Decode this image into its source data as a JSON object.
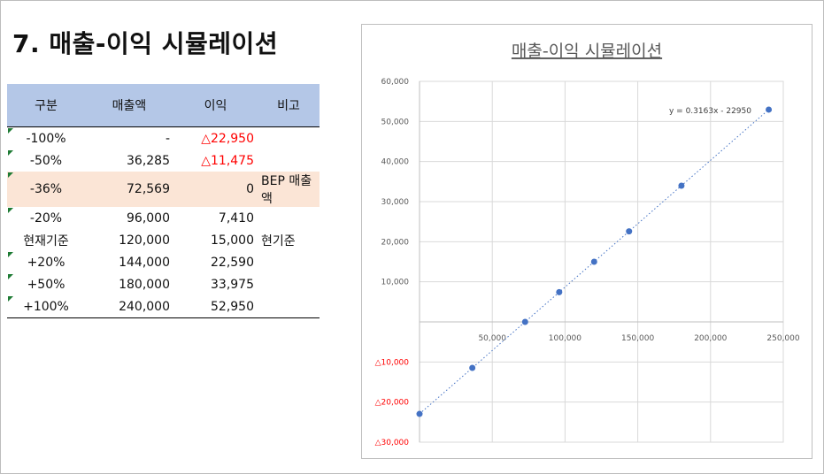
{
  "page_title": "7. 매출-이익 시뮬레이션",
  "table": {
    "headers": [
      "구분",
      "매출액",
      "이익",
      "비고"
    ],
    "rows": [
      {
        "label": "-100%",
        "sales": "-",
        "profit": "△22,950",
        "note": "",
        "flag": true,
        "neg": true,
        "hl": false
      },
      {
        "label": "-50%",
        "sales": "36,285",
        "profit": "△11,475",
        "note": "",
        "flag": true,
        "neg": true,
        "hl": false
      },
      {
        "label": "-36%",
        "sales": "72,569",
        "profit": "0",
        "note": "BEP 매출액",
        "flag": true,
        "neg": false,
        "hl": true
      },
      {
        "label": "-20%",
        "sales": "96,000",
        "profit": "7,410",
        "note": "",
        "flag": true,
        "neg": false,
        "hl": false
      },
      {
        "label": "현재기준",
        "sales": "120,000",
        "profit": "15,000",
        "note": "현기준",
        "flag": false,
        "neg": false,
        "hl": false
      },
      {
        "label": "+20%",
        "sales": "144,000",
        "profit": "22,590",
        "note": "",
        "flag": true,
        "neg": false,
        "hl": false
      },
      {
        "label": "+50%",
        "sales": "180,000",
        "profit": "33,975",
        "note": "",
        "flag": true,
        "neg": false,
        "hl": false
      },
      {
        "label": "+100%",
        "sales": "240,000",
        "profit": "52,950",
        "note": "",
        "flag": true,
        "neg": false,
        "hl": false
      }
    ]
  },
  "colors": {
    "point": "#4472c4",
    "negative_label": "#ff0000",
    "header_fill": "#b4c7e7",
    "highlight_fill": "#fbe5d6"
  },
  "chart_data": {
    "type": "scatter",
    "title": "매출-이익 시뮬레이션",
    "x": [
      0,
      36285,
      72569,
      96000,
      120000,
      144000,
      180000,
      240000
    ],
    "y": [
      -22950,
      -11475,
      0,
      7410,
      15000,
      22590,
      33975,
      52950
    ],
    "xlim": [
      0,
      250000
    ],
    "ylim": [
      -30000,
      60000
    ],
    "xticks": [
      {
        "v": 50000,
        "label": "50,000"
      },
      {
        "v": 100000,
        "label": "100,000"
      },
      {
        "v": 150000,
        "label": "150,000"
      },
      {
        "v": 200000,
        "label": "200,000"
      },
      {
        "v": 250000,
        "label": "250,000"
      }
    ],
    "yticks": [
      {
        "v": 60000,
        "label": "60,000"
      },
      {
        "v": 50000,
        "label": "50,000"
      },
      {
        "v": 40000,
        "label": "40,000"
      },
      {
        "v": 30000,
        "label": "30,000"
      },
      {
        "v": 20000,
        "label": "20,000"
      },
      {
        "v": 10000,
        "label": "10,000"
      },
      {
        "v": -10000,
        "label": "△10,000"
      },
      {
        "v": -20000,
        "label": "△20,000"
      },
      {
        "v": -30000,
        "label": "△30,000"
      }
    ],
    "trendline": {
      "label": "y = 0.3163x - 22950",
      "slope": 0.3163,
      "intercept": -22950
    },
    "grid": true
  }
}
